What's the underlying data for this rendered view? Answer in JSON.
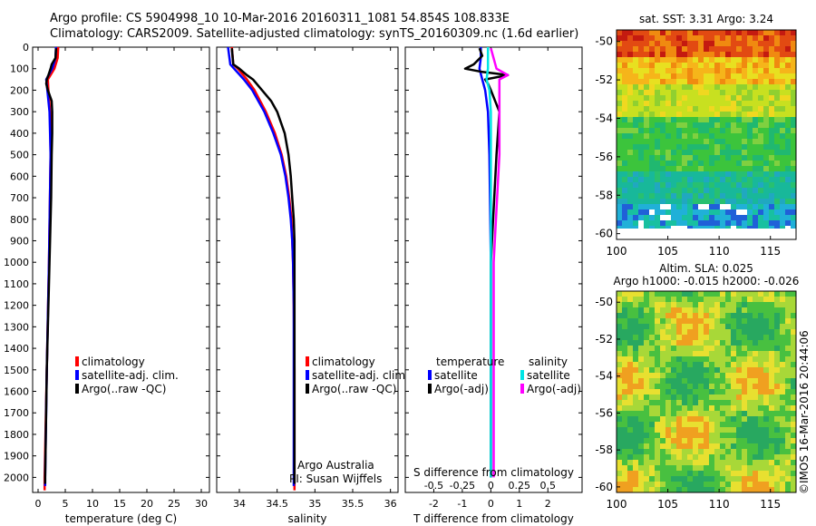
{
  "header": {
    "line1": "Argo profile: CS 5904998_10 10-Mar-2016 20160311_1081 54.854S 108.833E",
    "line2": "Climatology: CARS2009. Satellite-adjusted climatology: synTS_20160309.nc (1.6d earlier)"
  },
  "depth_ticks": [
    0,
    100,
    200,
    300,
    400,
    500,
    600,
    700,
    800,
    900,
    1000,
    1100,
    1200,
    1300,
    1400,
    1500,
    1600,
    1700,
    1800,
    1900,
    2000
  ],
  "chart_data": [
    {
      "type": "line",
      "id": "temperature",
      "xlabel": "temperature (deg C)",
      "xlim": [
        -1,
        31.5
      ],
      "ylim": [
        0,
        2070
      ],
      "y_reversed": true,
      "xticks": [
        0,
        5,
        10,
        15,
        20,
        25,
        30
      ],
      "xtick_labels": [
        "0",
        "5",
        "10",
        "15",
        "20",
        "25",
        "30"
      ],
      "legend": {
        "placement": "lower-center",
        "entries": [
          "climatology",
          "satellite-adj. clim.",
          "Argo(..raw -QC)"
        ]
      },
      "series": [
        {
          "name": "climatology",
          "color": "#ff0000",
          "depth": [
            0,
            50,
            100,
            150,
            200,
            300,
            500,
            1000,
            1500,
            2000,
            2060
          ],
          "values": [
            3.7,
            3.6,
            3.0,
            1.8,
            1.9,
            2.2,
            2.3,
            2.0,
            1.6,
            1.2,
            1.2
          ]
        },
        {
          "name": "satellite-adj. clim.",
          "color": "#0000ff",
          "depth": [
            0,
            50,
            100,
            150,
            200,
            300,
            500,
            1000,
            1500,
            2000,
            2040
          ],
          "values": [
            3.3,
            3.2,
            2.6,
            1.5,
            1.7,
            2.1,
            2.3,
            2.0,
            1.6,
            1.3,
            1.3
          ]
        },
        {
          "name": "Argo(..raw -QC)",
          "color": "#000000",
          "depth": [
            5,
            50,
            80,
            100,
            130,
            150,
            170,
            200,
            250,
            300,
            400,
            500,
            700,
            1000,
            1500,
            2000,
            2030
          ],
          "values": [
            3.3,
            3.2,
            2.5,
            2.3,
            1.9,
            1.6,
            1.5,
            1.8,
            2.5,
            2.6,
            2.6,
            2.5,
            2.4,
            2.1,
            1.6,
            1.3,
            1.3
          ]
        }
      ]
    },
    {
      "type": "line",
      "id": "salinity",
      "xlabel": "salinity",
      "xlim": [
        33.7,
        36.1
      ],
      "ylim": [
        0,
        2070
      ],
      "y_reversed": true,
      "xticks": [
        34,
        34.5,
        35,
        35.5,
        36
      ],
      "xtick_labels": [
        "34",
        "34.5",
        "35",
        "35.5",
        "36"
      ],
      "legend": {
        "placement": "lower-center",
        "entries": [
          "climatology",
          "satellite-adj. clim.",
          "Argo(..raw -QC)"
        ]
      },
      "annotation": [
        "Argo Australia",
        "PI: Susan Wijffels"
      ],
      "series": [
        {
          "name": "climatology",
          "color": "#ff0000",
          "depth": [
            0,
            80,
            100,
            150,
            200,
            300,
            400,
            500,
            600,
            700,
            800,
            900,
            1000,
            1200,
            1500,
            2000,
            2060
          ],
          "values": [
            33.9,
            33.92,
            33.98,
            34.1,
            34.2,
            34.35,
            34.47,
            34.56,
            34.62,
            34.66,
            34.69,
            34.7,
            34.71,
            34.72,
            34.73,
            34.73,
            34.73
          ]
        },
        {
          "name": "satellite-adj. clim.",
          "color": "#0000ff",
          "depth": [
            0,
            80,
            100,
            150,
            200,
            300,
            400,
            500,
            600,
            700,
            800,
            900,
            1000,
            1200,
            1500,
            2000,
            2040
          ],
          "values": [
            33.85,
            33.88,
            33.93,
            34.06,
            34.17,
            34.33,
            34.45,
            34.55,
            34.61,
            34.65,
            34.68,
            34.7,
            34.71,
            34.72,
            34.72,
            34.72,
            34.72
          ]
        },
        {
          "name": "Argo(..raw -QC)",
          "color": "#000000",
          "depth": [
            5,
            80,
            100,
            130,
            150,
            200,
            250,
            300,
            400,
            500,
            600,
            700,
            800,
            900,
            1000,
            1200,
            1500,
            2000,
            2030
          ],
          "values": [
            33.9,
            33.92,
            34.0,
            34.1,
            34.18,
            34.3,
            34.42,
            34.5,
            34.6,
            34.65,
            34.68,
            34.7,
            34.72,
            34.73,
            34.73,
            34.73,
            34.73,
            34.73,
            34.73
          ]
        }
      ]
    },
    {
      "type": "line",
      "id": "difference",
      "xlabel": "T difference from climatology",
      "xlabel_top": "S difference from climatology",
      "xlim": [
        -3,
        3.2
      ],
      "ylim": [
        0,
        2070
      ],
      "y_reversed": true,
      "xticks": [
        -2,
        -1,
        0,
        1,
        2
      ],
      "xtick_labels": [
        "-2",
        "-1",
        "0",
        "1",
        "2"
      ],
      "s_ticks": [
        -0.5,
        -0.25,
        0,
        0.25,
        0.5
      ],
      "s_tick_labels": [
        "-0.5",
        "-0.25",
        "0",
        "0.25",
        "0.5"
      ],
      "legend": {
        "placement": "lower",
        "group_titles": [
          "temperature",
          "salinity"
        ],
        "entries": [
          "satellite",
          "Argo(-adj)",
          "satellite",
          "Argo(-adj)"
        ]
      },
      "series": [
        {
          "name": "temperature satellite",
          "color": "#0000ff",
          "depth": [
            0,
            50,
            100,
            150,
            200,
            300,
            500,
            1000,
            1500,
            2000
          ],
          "values": [
            -0.35,
            -0.35,
            -0.4,
            -0.3,
            -0.2,
            -0.1,
            -0.05,
            0,
            0,
            0
          ]
        },
        {
          "name": "temperature Argo(-adj)",
          "color": "#000000",
          "depth": [
            5,
            40,
            80,
            100,
            115,
            130,
            150,
            170,
            200,
            300,
            500,
            1000,
            1500,
            2000
          ],
          "values": [
            -0.4,
            -0.3,
            -0.6,
            -0.9,
            -0.3,
            0.6,
            -0.2,
            -0.1,
            0.0,
            0.3,
            0.2,
            0.0,
            0.0,
            0.0
          ]
        },
        {
          "name": "salinity satellite",
          "color": "#00e5e5",
          "depth": [
            0,
            100,
            150,
            200,
            300,
            500,
            1000,
            1500,
            2000
          ],
          "values": [
            -0.1,
            -0.1,
            -0.15,
            -0.05,
            0,
            0,
            0,
            0,
            0
          ]
        },
        {
          "name": "salinity Argo(-adj)",
          "color": "#ff00ff",
          "depth": [
            5,
            100,
            130,
            150,
            200,
            300,
            500,
            1000,
            1500,
            2000
          ],
          "values": [
            0.0,
            0.2,
            0.6,
            0.3,
            0.3,
            0.3,
            0.3,
            0.1,
            0.1,
            0.1
          ]
        }
      ]
    },
    {
      "type": "heatmap",
      "id": "sst_map",
      "title": "sat. SST: 3.31 Argo: 3.24",
      "xlim": [
        100,
        117.5
      ],
      "ylim": [
        -60.3,
        -49.4
      ],
      "xticks": [
        100,
        105,
        110,
        115
      ],
      "xtick_labels": [
        "100",
        "105",
        "110",
        "115"
      ],
      "yticks": [
        -50,
        -52,
        -54,
        -56,
        -58,
        -60
      ],
      "ytick_labels": [
        "-50",
        "-52",
        "-54",
        "-56",
        "-58",
        "-60"
      ]
    },
    {
      "type": "heatmap",
      "id": "sla_map",
      "title": "Altim. SLA: 0.025",
      "subtitle": "Argo h1000: -0.015 h2000: -0.026",
      "xlim": [
        100,
        117.5
      ],
      "ylim": [
        -60.3,
        -49.4
      ],
      "xticks": [
        100,
        105,
        110,
        115
      ],
      "xtick_labels": [
        "100",
        "105",
        "110",
        "115"
      ],
      "yticks": [
        -50,
        -52,
        -54,
        -56,
        -58,
        -60
      ],
      "ytick_labels": [
        "-50",
        "-52",
        "-54",
        "-56",
        "-58",
        "-60"
      ],
      "side_text": "©IMOS 16-Mar-2016 20:44:06"
    }
  ]
}
